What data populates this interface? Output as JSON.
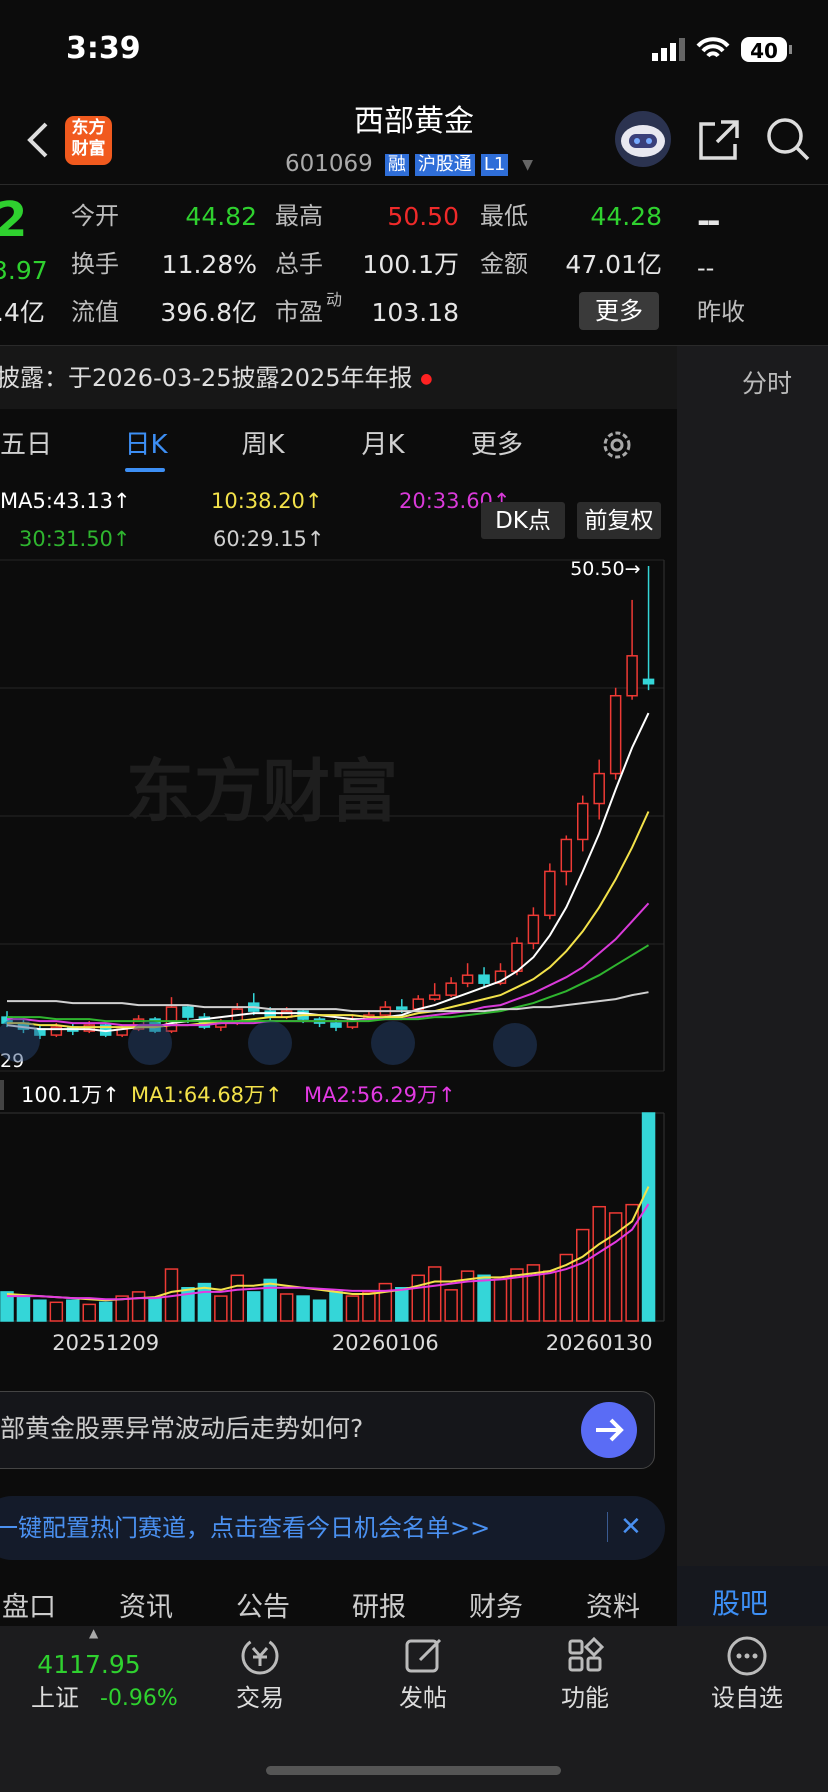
{
  "status_bar": {
    "time": "3:39",
    "battery": "40"
  },
  "header": {
    "logo_top": "东方",
    "logo_bottom": "财富",
    "title": "西部黄金",
    "code": "601069",
    "badges": [
      "融",
      "沪股通",
      "L1"
    ]
  },
  "quote": {
    "price": "2",
    "change": "3.97",
    "left_partial": ".4亿",
    "fields": [
      [
        {
          "label": "今开",
          "value": "44.82"
        },
        {
          "label": "最高",
          "value": "50.50"
        },
        {
          "label": "最低",
          "value": "44.28"
        }
      ],
      [
        {
          "label": "换手",
          "value": "11.28%"
        },
        {
          "label": "总手",
          "value": "100.1万"
        },
        {
          "label": "金额",
          "value": "47.01亿"
        }
      ],
      [
        {
          "label": "流值",
          "value": "396.8亿"
        },
        {
          "label": "市盈",
          "sup": "动",
          "value": "103.18"
        }
      ]
    ],
    "more": "更多",
    "right": [
      "--",
      "--",
      "昨收"
    ]
  },
  "notice": "披露：于2026-03-25披露2025年年报",
  "side_tab": "分时",
  "period_tabs": [
    "五日",
    "日K",
    "周K",
    "月K",
    "更多"
  ],
  "chart_data": {
    "type": "candlestick",
    "up_color": "#ee3a35",
    "down_color": "#34d6d8",
    "categories": [
      null,
      null,
      null,
      null,
      null,
      null,
      "20251209",
      null,
      null,
      null,
      null,
      null,
      null,
      null,
      null,
      null,
      null,
      null,
      null,
      null,
      null,
      null,
      null,
      "20260106",
      null,
      null,
      null,
      null,
      null,
      null,
      null,
      null,
      null,
      null,
      null,
      null,
      "20260130",
      null,
      null,
      null
    ],
    "candles": [
      [
        27.9,
        28.2,
        27.4,
        27.6
      ],
      [
        27.6,
        27.8,
        27.1,
        27.3
      ],
      [
        27.3,
        27.5,
        26.8,
        27.0
      ],
      [
        27.0,
        27.6,
        26.9,
        27.4
      ],
      [
        27.4,
        27.6,
        27.0,
        27.2
      ],
      [
        27.2,
        27.7,
        27.1,
        27.5
      ],
      [
        27.5,
        27.6,
        26.9,
        27.0
      ],
      [
        27.0,
        27.5,
        26.9,
        27.3
      ],
      [
        27.3,
        28.0,
        27.2,
        27.8
      ],
      [
        27.8,
        27.9,
        27.1,
        27.2
      ],
      [
        27.2,
        28.9,
        27.1,
        28.4
      ],
      [
        28.4,
        28.5,
        27.6,
        27.9
      ],
      [
        27.9,
        28.1,
        27.3,
        27.4
      ],
      [
        27.4,
        27.8,
        27.2,
        27.6
      ],
      [
        27.6,
        28.6,
        27.5,
        28.3
      ],
      [
        28.6,
        29.1,
        28.0,
        28.2
      ],
      [
        28.2,
        28.4,
        27.7,
        27.9
      ],
      [
        27.9,
        28.4,
        27.8,
        28.2
      ],
      [
        28.2,
        28.3,
        27.6,
        27.8
      ],
      [
        27.8,
        27.9,
        27.4,
        27.6
      ],
      [
        27.6,
        27.8,
        27.2,
        27.4
      ],
      [
        27.4,
        28.0,
        27.3,
        27.8
      ],
      [
        27.8,
        28.2,
        27.7,
        28.0
      ],
      [
        28.0,
        28.7,
        27.9,
        28.4
      ],
      [
        28.4,
        28.8,
        28.1,
        28.3
      ],
      [
        28.3,
        29.0,
        28.2,
        28.8
      ],
      [
        28.8,
        29.6,
        28.7,
        29.0
      ],
      [
        29.0,
        29.9,
        28.9,
        29.6
      ],
      [
        29.6,
        30.6,
        29.4,
        30.0
      ],
      [
        30.0,
        30.4,
        29.4,
        29.6
      ],
      [
        29.6,
        30.6,
        29.5,
        30.2
      ],
      [
        30.2,
        31.9,
        30.0,
        31.6
      ],
      [
        31.6,
        33.4,
        31.3,
        33.0
      ],
      [
        33.0,
        35.6,
        32.8,
        35.2
      ],
      [
        35.2,
        37.0,
        34.5,
        36.8
      ],
      [
        36.8,
        39.0,
        36.2,
        38.6
      ],
      [
        38.6,
        40.8,
        37.8,
        40.1
      ],
      [
        40.1,
        44.4,
        39.8,
        44.0
      ],
      [
        44.0,
        48.8,
        43.8,
        46.0
      ],
      [
        44.82,
        50.5,
        44.28,
        44.6
      ]
    ],
    "ylim": [
      25.2,
      50.8
    ],
    "high_label": "50.50→",
    "left_label": "29",
    "watermark": "东方财富",
    "ma_series": [
      {
        "label": "MA5:43.13↑",
        "color": "#ffffff",
        "values": [
          27.5,
          27.4,
          27.3,
          27.3,
          27.3,
          27.3,
          27.2,
          27.3,
          27.4,
          27.4,
          27.6,
          27.7,
          27.8,
          27.9,
          28.0,
          28.1,
          28.1,
          28.1,
          28.1,
          28.0,
          27.9,
          27.8,
          27.8,
          27.9,
          28.0,
          28.3,
          28.5,
          28.8,
          29.1,
          29.4,
          29.7,
          30.2,
          30.9,
          32.0,
          33.4,
          35.2,
          37.1,
          39.3,
          41.4,
          43.13
        ]
      },
      {
        "label": "10:38.20↑",
        "color": "#f3e24a",
        "values": [
          27.6,
          27.6,
          27.5,
          27.5,
          27.4,
          27.4,
          27.4,
          27.4,
          27.4,
          27.4,
          27.5,
          27.5,
          27.6,
          27.6,
          27.7,
          27.8,
          27.9,
          27.9,
          28.0,
          28.0,
          28.0,
          28.0,
          27.9,
          27.9,
          27.9,
          28.1,
          28.2,
          28.4,
          28.6,
          28.8,
          29.0,
          29.4,
          29.8,
          30.4,
          31.2,
          32.2,
          33.4,
          34.8,
          36.4,
          38.2
        ]
      },
      {
        "label": "20:33.60↑",
        "color": "#d93ad9",
        "values": [
          27.8,
          27.8,
          27.7,
          27.7,
          27.6,
          27.6,
          27.6,
          27.5,
          27.5,
          27.5,
          27.5,
          27.5,
          27.5,
          27.6,
          27.6,
          27.6,
          27.7,
          27.7,
          27.7,
          27.7,
          27.7,
          27.7,
          27.8,
          27.8,
          27.8,
          27.9,
          28.0,
          28.1,
          28.2,
          28.4,
          28.5,
          28.8,
          29.1,
          29.5,
          29.9,
          30.4,
          31.1,
          31.8,
          32.7,
          33.6
        ]
      },
      {
        "label": "30:31.50↑",
        "color": "#2fb52f",
        "values": [
          27.9,
          27.9,
          27.9,
          27.8,
          27.8,
          27.8,
          27.7,
          27.7,
          27.7,
          27.7,
          27.7,
          27.7,
          27.7,
          27.7,
          27.7,
          27.7,
          27.7,
          27.7,
          27.7,
          27.7,
          27.7,
          27.7,
          27.7,
          27.8,
          27.8,
          27.8,
          27.9,
          27.9,
          28.0,
          28.1,
          28.2,
          28.4,
          28.6,
          28.9,
          29.2,
          29.6,
          30.0,
          30.5,
          31.0,
          31.5
        ]
      },
      {
        "label": "60:29.15↑",
        "color": "#d0d0d0",
        "values": [
          28.7,
          28.7,
          28.7,
          28.7,
          28.6,
          28.6,
          28.6,
          28.6,
          28.5,
          28.5,
          28.5,
          28.5,
          28.4,
          28.4,
          28.4,
          28.4,
          28.3,
          28.3,
          28.3,
          28.3,
          28.3,
          28.2,
          28.2,
          28.2,
          28.2,
          28.2,
          28.2,
          28.2,
          28.2,
          28.2,
          28.3,
          28.3,
          28.4,
          28.4,
          28.5,
          28.6,
          28.7,
          28.8,
          29.0,
          29.15
        ]
      }
    ],
    "buttons": [
      "DK点",
      "前复权"
    ],
    "volume": {
      "values": [
        14,
        12,
        10,
        9,
        10,
        8,
        9,
        12,
        14,
        11,
        25,
        16,
        18,
        12,
        22,
        14,
        20,
        13,
        12,
        10,
        14,
        12,
        14,
        18,
        16,
        22,
        26,
        15,
        24,
        22,
        20,
        25,
        27,
        24,
        32,
        44,
        55,
        52,
        56,
        100.1
      ],
      "ylim": [
        0,
        100.1
      ],
      "label": "100.1万↑",
      "ma_series": [
        {
          "label": "MA1:64.68万↑",
          "color": "#f3e24a",
          "values": [
            13,
            12.5,
            12,
            11.5,
            11,
            10.5,
            10,
            10.5,
            11,
            11.5,
            14,
            15,
            16,
            15,
            17,
            17,
            18,
            17,
            16,
            15,
            14,
            13,
            13,
            14,
            15,
            17,
            19,
            19,
            20,
            21,
            21,
            22,
            23,
            24,
            27,
            31,
            37,
            42,
            48,
            64.68
          ]
        },
        {
          "label": "MA2:56.29万↑",
          "color": "#e23ae2",
          "values": [
            12,
            12,
            12,
            11.5,
            11,
            11,
            10.5,
            10.5,
            11,
            11,
            12,
            13,
            14,
            14,
            15,
            15.5,
            16,
            16,
            16,
            15.5,
            15,
            14.5,
            14.5,
            14.5,
            15,
            16,
            17,
            18,
            19,
            19.5,
            20,
            21,
            22,
            23,
            25,
            28,
            33,
            38,
            44,
            56.29
          ]
        }
      ]
    }
  },
  "ask": "部黄金股票异常波动后走势如何?",
  "banner": "一键配置热门赛道，点击查看今日机会名单>>",
  "info_tabs": [
    "盘口",
    "资讯",
    "公告",
    "研报",
    "财务",
    "资料"
  ],
  "side_bottom_tab": "股吧",
  "bottom_bar": {
    "index_value": "4117.95",
    "index_name": "上证",
    "index_change": "-0.96%",
    "items": [
      "交易",
      "发帖",
      "功能",
      "设自选"
    ]
  }
}
